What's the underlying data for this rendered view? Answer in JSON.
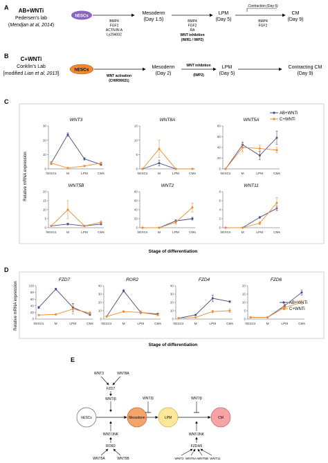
{
  "panel_labels": {
    "A": "A",
    "B": "B",
    "C": "C",
    "D": "D",
    "E": "E"
  },
  "panel_A": {
    "title": "AB+WNTi",
    "lab": "Pedersen's lab",
    "citation_prefix": "(",
    "citation_italic": "Mendjan at al, 2014",
    "citation_suffix": ")",
    "start": "hESCs",
    "factors1": [
      "BMP4",
      "FGF2",
      "ACTIVIN A",
      "Ly294002"
    ],
    "stage1": "Mesoderm",
    "time1": "(Day 1.5)",
    "factors2": [
      "BMP4",
      "FGF2",
      "RA"
    ],
    "inhib_label": "WNT inhibition",
    "inhib_detail": "(IWR1 / IWP2)",
    "stage2": "LPM",
    "time2": "(Day 5)",
    "contraction": "Contraction (Day 6)",
    "factors3": [
      "BMP4",
      "FGF2"
    ],
    "stage3": "CM",
    "time3": "(Day 9)"
  },
  "panel_B": {
    "title": "C+WNTi",
    "lab": "Conklin's Lab",
    "citation_prefix": "[modified ",
    "citation_italic": "Lian et al, 2013",
    "citation_suffix": "]",
    "start": "hESCs",
    "act_label": "WNT activation",
    "act_detail": "(CHIR99021)",
    "stage1": "Mesoderm",
    "time1": "(Day 2)",
    "inhib_label": "WNT inhibition",
    "inhib_detail": "(IWP2)",
    "stage2": "LPM",
    "time2": "(Day 5)",
    "stage3": "Contracting CM",
    "time3": "(Day 9)"
  },
  "panel_C": {
    "ylabel": "Relative mRNA expression",
    "xlabel": "Stage of differentiation"
  },
  "panel_D": {
    "ylabel": "Relative mRNA expression",
    "xlabel": "Stage of differentiation"
  },
  "legend": {
    "series1": "AB+WNTi",
    "series2": "C+WNTi"
  },
  "colors": {
    "ab": "#4a4a8c",
    "c": "#f08a2c",
    "mesoderm": "#f4a46a",
    "lpm": "#ffe79a",
    "cm": "#f7a2a4",
    "hescs_b": "#f08a2c",
    "hescs_a": "#8a64c4"
  },
  "chart_data": [
    {
      "type": "line",
      "title": "WNT3",
      "categories": [
        "hESCs",
        "M",
        "LPM",
        "CMs"
      ],
      "ylim": [
        0,
        30
      ],
      "yticks": [
        0,
        10,
        20,
        30
      ],
      "series": [
        {
          "name": "AB+WNTi",
          "values": [
            4,
            24,
            7,
            3
          ],
          "err": [
            1,
            1.2,
            0.8,
            0.6
          ]
        },
        {
          "name": "C+WNTi",
          "values": [
            4,
            0.6,
            2,
            4
          ],
          "err": [
            0.8,
            0.3,
            0.5,
            0.8
          ]
        }
      ]
    },
    {
      "type": "line",
      "title": "WNT8A",
      "categories": [
        "hESCs",
        "M",
        "LPM",
        "CMs"
      ],
      "ylim": [
        0,
        15
      ],
      "yticks": [
        0,
        5,
        10,
        15
      ],
      "series": [
        {
          "name": "AB+WNTi",
          "values": [
            0,
            2,
            0,
            0
          ],
          "err": [
            0,
            1,
            0,
            0
          ]
        },
        {
          "name": "C+WNTi",
          "values": [
            0,
            7,
            0,
            0
          ],
          "err": [
            0,
            3,
            0,
            0
          ]
        }
      ]
    },
    {
      "type": "line",
      "title": "WNT5A",
      "categories": [
        "hESCs",
        "M",
        "LPM",
        "CMs"
      ],
      "ylim": [
        0,
        80
      ],
      "yticks": [
        0,
        20,
        40,
        60,
        80
      ],
      "series": [
        {
          "name": "AB+WNTi",
          "values": [
            0,
            45,
            25,
            58
          ],
          "err": [
            0,
            5,
            8,
            12
          ]
        },
        {
          "name": "C+WNTi",
          "values": [
            0,
            40,
            38,
            35
          ],
          "err": [
            0,
            8,
            6,
            5
          ]
        }
      ]
    },
    {
      "type": "line",
      "title": "WNT5B",
      "categories": [
        "hESCs",
        "M",
        "LPM",
        "CMs"
      ],
      "ylim": [
        0,
        20
      ],
      "yticks": [
        0,
        5,
        10,
        15,
        20
      ],
      "series": [
        {
          "name": "AB+WNTi",
          "values": [
            1,
            2,
            1,
            2
          ],
          "err": [
            0.3,
            0.5,
            0.3,
            0.4
          ]
        },
        {
          "name": "C+WNTi",
          "values": [
            1,
            10,
            1,
            3
          ],
          "err": [
            0.3,
            5,
            0.4,
            0.8
          ]
        }
      ]
    },
    {
      "type": "line",
      "title": "WNT2",
      "categories": [
        "hESCs",
        "M",
        "LPM",
        "CMs"
      ],
      "ylim": [
        0,
        80
      ],
      "yticks": [
        0,
        20,
        40,
        60,
        80
      ],
      "series": [
        {
          "name": "AB+WNTi",
          "values": [
            0,
            0,
            15,
            20
          ],
          "err": [
            0,
            0,
            3,
            3
          ]
        },
        {
          "name": "C+WNTi",
          "values": [
            0,
            0,
            12,
            45
          ],
          "err": [
            0,
            0,
            4,
            10
          ]
        }
      ]
    },
    {
      "type": "line",
      "title": "WNT11",
      "categories": [
        "hESCs",
        "M",
        "LPM",
        "CMs"
      ],
      "ylim": [
        0,
        8
      ],
      "yticks": [
        0,
        2,
        4,
        6,
        8
      ],
      "series": [
        {
          "name": "AB+WNTi",
          "values": [
            0,
            0,
            2.3,
            4.3
          ],
          "err": [
            0,
            0,
            0.2,
            0.5
          ]
        },
        {
          "name": "C+WNTi",
          "values": [
            0,
            0,
            1,
            5.5
          ],
          "err": [
            0,
            0,
            0.3,
            1.2
          ]
        }
      ]
    },
    {
      "type": "line",
      "title": "FZD7",
      "categories": [
        "hESCs",
        "M",
        "LPM",
        "CMs"
      ],
      "ylim": [
        0,
        100
      ],
      "yticks": [
        0,
        20,
        40,
        60,
        80,
        100
      ],
      "series": [
        {
          "name": "AB+WNTi",
          "values": [
            35,
            90,
            35,
            13
          ],
          "err": [
            3,
            3,
            12,
            2
          ]
        },
        {
          "name": "C+WNTi",
          "values": [
            12,
            14,
            30,
            18
          ],
          "err": [
            1,
            2,
            15,
            4
          ]
        }
      ]
    },
    {
      "type": "line",
      "title": "ROR2",
      "categories": [
        "hESCs",
        "M",
        "LPM",
        "CMs"
      ],
      "ylim": [
        0,
        40
      ],
      "yticks": [
        0,
        10,
        20,
        30,
        40
      ],
      "series": [
        {
          "name": "AB+WNTi",
          "values": [
            3,
            34,
            8,
            6
          ],
          "err": [
            0.5,
            1.5,
            1,
            1
          ]
        },
        {
          "name": "C+WNTi",
          "values": [
            3,
            9,
            8,
            5
          ],
          "err": [
            0.5,
            1,
            2,
            1
          ]
        }
      ]
    },
    {
      "type": "line",
      "title": "FZD4",
      "categories": [
        "hESCs",
        "M",
        "LPM",
        "CMs"
      ],
      "ylim": [
        0,
        40
      ],
      "yticks": [
        0,
        10,
        20,
        30,
        40
      ],
      "series": [
        {
          "name": "AB+WNTi",
          "values": [
            1,
            5,
            25,
            21
          ],
          "err": [
            0.3,
            0.5,
            4,
            1
          ]
        },
        {
          "name": "C+WNTi",
          "values": [
            1,
            2,
            9,
            10
          ],
          "err": [
            0.3,
            0.4,
            1.5,
            2
          ]
        }
      ]
    },
    {
      "type": "line",
      "title": "FZD6",
      "categories": [
        "hESCs",
        "M",
        "LPM",
        "CMs"
      ],
      "ylim": [
        0,
        20
      ],
      "yticks": [
        0,
        5,
        10,
        15,
        20
      ],
      "series": [
        {
          "name": "AB+WNTi",
          "values": [
            1,
            1,
            8,
            16
          ],
          "err": [
            0.2,
            0.2,
            1,
            1.5
          ]
        },
        {
          "name": "C+WNTi",
          "values": [
            1,
            1,
            7,
            10
          ],
          "err": [
            0.2,
            0.2,
            1.5,
            1
          ]
        }
      ]
    }
  ],
  "panel_E": {
    "top_ligands": [
      "WNT3",
      "WNT8A"
    ],
    "top_receptor": "FZD7",
    "top_pathway": "WNT/β",
    "hescs": "hESCs",
    "mesoderm": "Mesoderm",
    "lpm": "LPM",
    "cm": "CM",
    "mid_pathway": "WNT/β",
    "right_pathway": "WNT/β",
    "left_jnk": "WNT/JNK",
    "left_receptor": "ROR2",
    "left_ligands": [
      "WNT5A",
      "WNT5B"
    ],
    "right_jnk": "WNT/JNK",
    "right_receptor": "FZD4/6",
    "right_ligands": [
      "WNT2",
      "WNT5A",
      "WNT5B",
      "WNT11"
    ]
  }
}
